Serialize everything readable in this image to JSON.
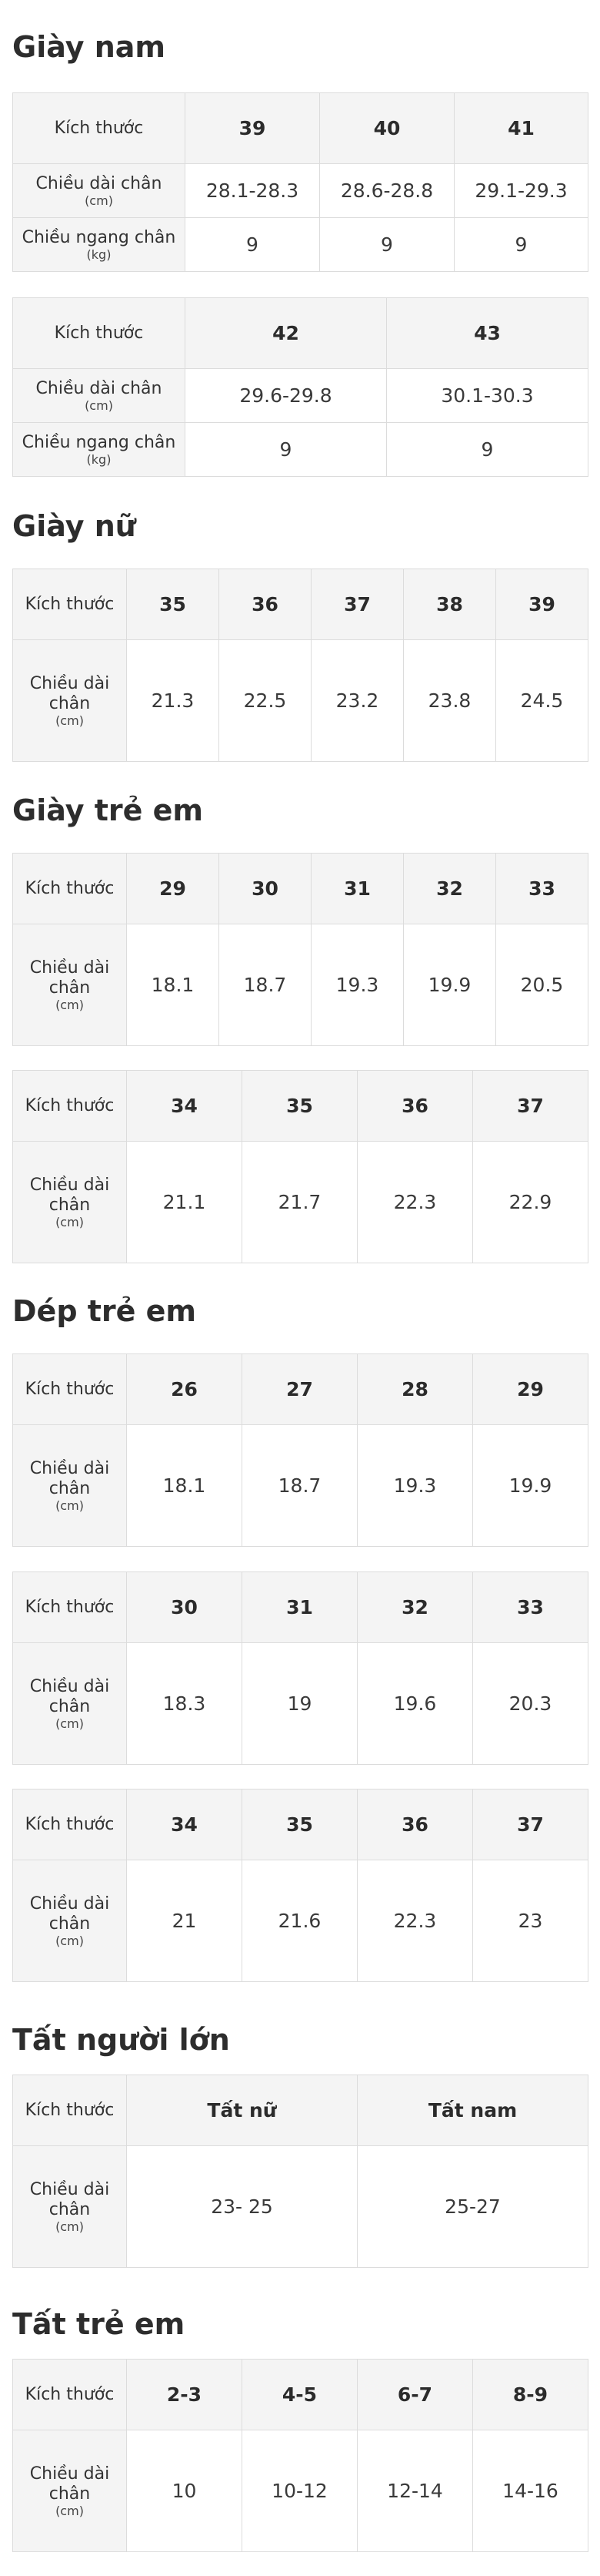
{
  "sections": [
    {
      "title": "Giày nam",
      "tables": [
        {
          "header_label": "Kích thước",
          "sizes": [
            "39",
            "40",
            "41"
          ],
          "rows": [
            {
              "label": "Chiều dài chân",
              "unit": "(cm)",
              "values": [
                "28.1-28.3",
                "28.6-28.8",
                "29.1-29.3"
              ]
            },
            {
              "label": "Chiều ngang chân",
              "unit": "(kg)",
              "values": [
                "9",
                "9",
                "9"
              ]
            }
          ]
        },
        {
          "header_label": "Kích thước",
          "sizes": [
            "42",
            "43"
          ],
          "rows": [
            {
              "label": "Chiều dài chân",
              "unit": "(cm)",
              "values": [
                "29.6-29.8",
                "30.1-30.3"
              ]
            },
            {
              "label": "Chiều ngang chân",
              "unit": "(kg)",
              "values": [
                "9",
                "9"
              ]
            }
          ]
        }
      ]
    },
    {
      "title": "Giày nữ",
      "tables": [
        {
          "header_label": "Kích thước",
          "sizes": [
            "35",
            "36",
            "37",
            "38",
            "39"
          ],
          "rows": [
            {
              "label": "Chiều dài chân",
              "unit": "(cm)",
              "values": [
                "21.3",
                "22.5",
                "23.2",
                "23.8",
                "24.5"
              ]
            }
          ]
        }
      ]
    },
    {
      "title": "Giày trẻ em",
      "tables": [
        {
          "header_label": "Kích thước",
          "sizes": [
            "29",
            "30",
            "31",
            "32",
            "33"
          ],
          "rows": [
            {
              "label": "Chiều dài chân",
              "unit": "(cm)",
              "values": [
                "18.1",
                "18.7",
                "19.3",
                "19.9",
                "20.5"
              ]
            }
          ]
        },
        {
          "header_label": "Kích thước",
          "sizes": [
            "34",
            "35",
            "36",
            "37"
          ],
          "rows": [
            {
              "label": "Chiều dài chân",
              "unit": "(cm)",
              "values": [
                "21.1",
                "21.7",
                "22.3",
                "22.9"
              ]
            }
          ]
        }
      ]
    },
    {
      "title": "Dép trẻ em",
      "tables": [
        {
          "header_label": "Kích thước",
          "sizes": [
            "26",
            "27",
            "28",
            "29"
          ],
          "rows": [
            {
              "label": "Chiều dài chân",
              "unit": "(cm)",
              "values": [
                "18.1",
                "18.7",
                "19.3",
                "19.9"
              ]
            }
          ]
        },
        {
          "header_label": "Kích thước",
          "sizes": [
            "30",
            "31",
            "32",
            "33"
          ],
          "rows": [
            {
              "label": "Chiều dài chân",
              "unit": "(cm)",
              "values": [
                "18.3",
                "19",
                "19.6",
                "20.3"
              ]
            }
          ]
        },
        {
          "header_label": "Kích thước",
          "sizes": [
            "34",
            "35",
            "36",
            "37"
          ],
          "rows": [
            {
              "label": "Chiều dài chân",
              "unit": "(cm)",
              "values": [
                "21",
                "21.6",
                "22.3",
                "23"
              ]
            }
          ]
        }
      ]
    },
    {
      "title": "Tất người lớn",
      "tables": [
        {
          "header_label": "Kích thước",
          "sizes": [
            "Tất nữ",
            "Tất nam"
          ],
          "rows": [
            {
              "label": "Chiều dài chân",
              "unit": "(cm)",
              "values": [
                "23- 25",
                "25-27"
              ]
            }
          ]
        }
      ]
    },
    {
      "title": "Tất trẻ em",
      "tables": [
        {
          "header_label": "Kích thước",
          "sizes": [
            "2-3",
            "4-5",
            "6-7",
            "8-9"
          ],
          "rows": [
            {
              "label": "Chiều dài chân",
              "unit": "(cm)",
              "values": [
                "10",
                "10-12",
                "12-14",
                "14-16"
              ]
            }
          ]
        }
      ]
    }
  ]
}
